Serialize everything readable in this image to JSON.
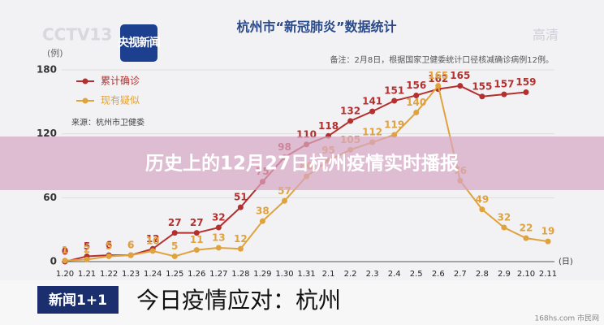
{
  "overlay_title": "历史上的12月27日杭州疫情实时播报",
  "broadcast": {
    "channel": "CCTV13",
    "logo": "央视新闻",
    "quality": "高清",
    "program": "新闻1+1",
    "caption": "今日疫情应对：杭州",
    "watermark": "168hs.com 市民网"
  },
  "chart_data": {
    "type": "line",
    "title": "杭州市“新冠肺炎”数据统计",
    "note": "备注：2月8日，根据国家卫健委统计口径核减确诊病例12例。",
    "source": "来源：杭州市卫健委",
    "y_label": "(例)",
    "x_label": "(日)",
    "categories": [
      "1.20",
      "1.21",
      "1.22",
      "1.23",
      "1.24",
      "1.25",
      "1.26",
      "1.27",
      "1.28",
      "1.29",
      "1.30",
      "1.31",
      "2.1",
      "2.2",
      "2.3",
      "2.4",
      "2.5",
      "2.6",
      "2.7",
      "2.8",
      "2.9",
      "2.10",
      "2.11"
    ],
    "series": [
      {
        "name": "累计确诊",
        "color": "#b3302e",
        "values": [
          0,
          5,
          6,
          6,
          12,
          27,
          27,
          32,
          51,
          75,
          98,
          110,
          118,
          132,
          141,
          151,
          156,
          162,
          165,
          155,
          157,
          159,
          null
        ]
      },
      {
        "name": "现有疑似",
        "color": "#e0a23c",
        "values": [
          1,
          2,
          5,
          6,
          10,
          5,
          11,
          13,
          12,
          38,
          57,
          80,
          95,
          105,
          112,
          119,
          140,
          165,
          76,
          49,
          32,
          22,
          19
        ]
      }
    ],
    "ylim": [
      0,
      180
    ],
    "yticks": [
      0,
      60,
      120,
      180
    ],
    "legend": "upper left"
  }
}
